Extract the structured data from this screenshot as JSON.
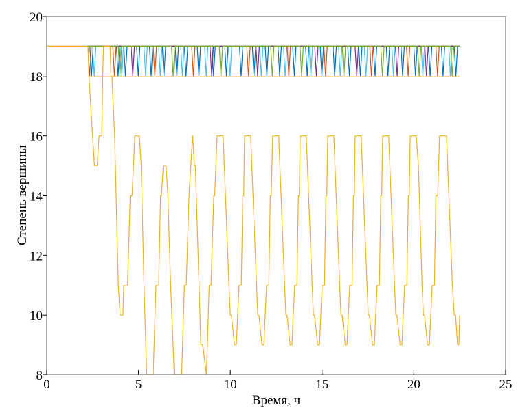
{
  "chart_data": {
    "type": "line",
    "title": "",
    "xlabel": "Время, ч",
    "ylabel": "Степень вершины",
    "xlim": [
      0,
      25
    ],
    "ylim": [
      8,
      20
    ],
    "xticks": [
      "0",
      "5",
      "10",
      "15",
      "20",
      "25"
    ],
    "yticks": [
      "8",
      "10",
      "12",
      "14",
      "16",
      "18",
      "20"
    ],
    "grid": false,
    "legend": "none",
    "axis_color": "#808080",
    "series": [
      {
        "color": "#4DBEEE",
        "points": [
          [
            0,
            19
          ],
          [
            22.5,
            19
          ]
        ]
      },
      {
        "color": "#EDB120",
        "points": [
          [
            2.25,
            18
          ],
          [
            22.5,
            18
          ]
        ]
      },
      {
        "color": "#0072BD",
        "high": 19,
        "low": 18,
        "start": 2.2,
        "end": 22.5,
        "dip_times": [
          2.35,
          3.8,
          4.2,
          4.9,
          5.6,
          6.3,
          7.0,
          7.5,
          8.2,
          9.0,
          9.7,
          10.5,
          11.2,
          11.9,
          12.6,
          13.4,
          14.1,
          14.9,
          15.6,
          16.4,
          17.0,
          17.8,
          18.5,
          19.3,
          20.0,
          20.8,
          21.5,
          22.2
        ]
      },
      {
        "color": "#4DBEEE",
        "high": 19,
        "low": 18,
        "start": 2.2,
        "end": 22.5,
        "dip_times": [
          2.5,
          4.0,
          5.3,
          6.1,
          7.3,
          8.6,
          9.9,
          11.6,
          12.9,
          14.3,
          15.9,
          17.3,
          18.8,
          20.4,
          21.9
        ]
      },
      {
        "color": "#D95319",
        "high": 19,
        "low": 18,
        "start": 2.2,
        "end": 22.5,
        "dip_times": [
          2.25,
          3.6,
          5.8,
          7.9,
          10.9,
          13.1,
          15.1,
          17.6,
          19.6,
          21.2
        ]
      },
      {
        "color": "#7E2F8E",
        "high": 19,
        "low": 18,
        "start": 2.2,
        "end": 22.5,
        "dip_times": [
          4.6,
          8.9,
          11.4,
          14.6,
          16.8,
          19.0,
          20.6
        ]
      },
      {
        "color": "#77AC30",
        "high": 19,
        "low": 18,
        "start": 2.2,
        "end": 22.5,
        "dip_times": [
          3.9,
          6.8,
          9.4,
          12.2,
          13.8,
          16.1,
          18.2,
          20.2,
          22.0
        ]
      },
      {
        "color": "#EDB120",
        "points": [
          [
            0,
            19
          ],
          [
            2.25,
            19
          ],
          [
            2.3,
            18
          ],
          [
            2.5,
            16
          ],
          [
            2.6,
            15
          ],
          [
            2.75,
            15
          ],
          [
            2.85,
            16
          ],
          [
            3.0,
            16
          ],
          [
            3.05,
            18
          ],
          [
            3.1,
            19
          ],
          [
            3.45,
            19
          ],
          [
            3.5,
            18
          ],
          [
            3.55,
            18
          ],
          [
            3.7,
            16
          ],
          [
            3.9,
            11
          ],
          [
            4.0,
            10
          ],
          [
            4.15,
            10
          ],
          [
            4.2,
            11
          ],
          [
            4.4,
            11
          ],
          [
            4.55,
            14
          ],
          [
            4.65,
            14
          ],
          [
            4.8,
            16
          ],
          [
            5.05,
            16
          ],
          [
            5.15,
            15
          ],
          [
            5.3,
            11
          ],
          [
            5.45,
            8
          ],
          [
            5.8,
            8
          ],
          [
            5.95,
            11
          ],
          [
            6.1,
            11
          ],
          [
            6.2,
            14
          ],
          [
            6.25,
            14
          ],
          [
            6.35,
            15
          ],
          [
            6.5,
            15
          ],
          [
            6.6,
            14
          ],
          [
            6.75,
            11
          ],
          [
            6.95,
            8
          ],
          [
            7.35,
            8
          ],
          [
            7.5,
            11
          ],
          [
            7.6,
            11
          ],
          [
            7.75,
            14
          ],
          [
            7.95,
            16
          ],
          [
            8.05,
            15
          ],
          [
            8.1,
            15
          ],
          [
            8.4,
            9
          ],
          [
            8.5,
            9
          ],
          [
            8.7,
            8
          ],
          [
            8.85,
            11
          ],
          [
            8.95,
            11
          ],
          [
            9.1,
            14
          ],
          [
            9.15,
            14
          ],
          [
            9.28,
            16
          ],
          [
            9.61,
            16
          ],
          [
            9.93,
            11
          ],
          [
            10.0,
            10
          ],
          [
            10.06,
            10
          ],
          [
            10.23,
            9
          ],
          [
            10.33,
            9
          ],
          [
            10.4,
            10
          ],
          [
            10.48,
            11
          ],
          [
            10.6,
            11
          ],
          [
            10.68,
            14
          ],
          [
            10.73,
            14
          ],
          [
            10.78,
            16
          ],
          [
            11.11,
            16
          ],
          [
            11.43,
            11
          ],
          [
            11.5,
            10
          ],
          [
            11.56,
            10
          ],
          [
            11.73,
            9
          ],
          [
            11.83,
            9
          ],
          [
            11.9,
            10
          ],
          [
            11.98,
            11
          ],
          [
            12.1,
            11
          ],
          [
            12.18,
            14
          ],
          [
            12.23,
            14
          ],
          [
            12.31,
            16
          ],
          [
            12.64,
            16
          ],
          [
            12.96,
            11
          ],
          [
            13.03,
            10
          ],
          [
            13.09,
            10
          ],
          [
            13.26,
            9
          ],
          [
            13.36,
            9
          ],
          [
            13.43,
            10
          ],
          [
            13.51,
            11
          ],
          [
            13.63,
            11
          ],
          [
            13.71,
            14
          ],
          [
            13.76,
            14
          ],
          [
            13.81,
            16
          ],
          [
            14.14,
            16
          ],
          [
            14.46,
            11
          ],
          [
            14.53,
            10
          ],
          [
            14.59,
            10
          ],
          [
            14.76,
            9
          ],
          [
            14.86,
            9
          ],
          [
            14.93,
            10
          ],
          [
            15.01,
            11
          ],
          [
            15.13,
            11
          ],
          [
            15.21,
            14
          ],
          [
            15.26,
            14
          ],
          [
            15.31,
            16
          ],
          [
            15.64,
            16
          ],
          [
            15.96,
            11
          ],
          [
            16.03,
            10
          ],
          [
            16.09,
            10
          ],
          [
            16.26,
            9
          ],
          [
            16.36,
            9
          ],
          [
            16.43,
            10
          ],
          [
            16.51,
            11
          ],
          [
            16.63,
            11
          ],
          [
            16.71,
            14
          ],
          [
            16.76,
            14
          ],
          [
            16.8,
            16
          ],
          [
            17.13,
            16
          ],
          [
            17.45,
            11
          ],
          [
            17.52,
            10
          ],
          [
            17.58,
            10
          ],
          [
            17.75,
            9
          ],
          [
            17.85,
            9
          ],
          [
            17.92,
            10
          ],
          [
            18.0,
            11
          ],
          [
            18.12,
            11
          ],
          [
            18.2,
            14
          ],
          [
            18.25,
            14
          ],
          [
            18.3,
            16
          ],
          [
            18.63,
            16
          ],
          [
            18.95,
            11
          ],
          [
            19.02,
            10
          ],
          [
            19.08,
            10
          ],
          [
            19.25,
            9
          ],
          [
            19.35,
            9
          ],
          [
            19.42,
            10
          ],
          [
            19.5,
            11
          ],
          [
            19.62,
            11
          ],
          [
            19.7,
            14
          ],
          [
            19.75,
            14
          ],
          [
            19.8,
            16
          ],
          [
            20.13,
            16
          ],
          [
            20.25,
            15
          ],
          [
            20.45,
            11
          ],
          [
            20.52,
            10
          ],
          [
            20.58,
            10
          ],
          [
            20.75,
            9
          ],
          [
            20.85,
            9
          ],
          [
            20.92,
            10
          ],
          [
            21.0,
            11
          ],
          [
            21.12,
            11
          ],
          [
            21.2,
            14
          ],
          [
            21.3,
            14
          ],
          [
            21.4,
            16
          ],
          [
            21.78,
            16
          ],
          [
            22.1,
            11
          ],
          [
            22.2,
            10
          ],
          [
            22.27,
            10
          ],
          [
            22.38,
            9
          ],
          [
            22.45,
            9
          ],
          [
            22.5,
            10
          ]
        ]
      }
    ]
  }
}
